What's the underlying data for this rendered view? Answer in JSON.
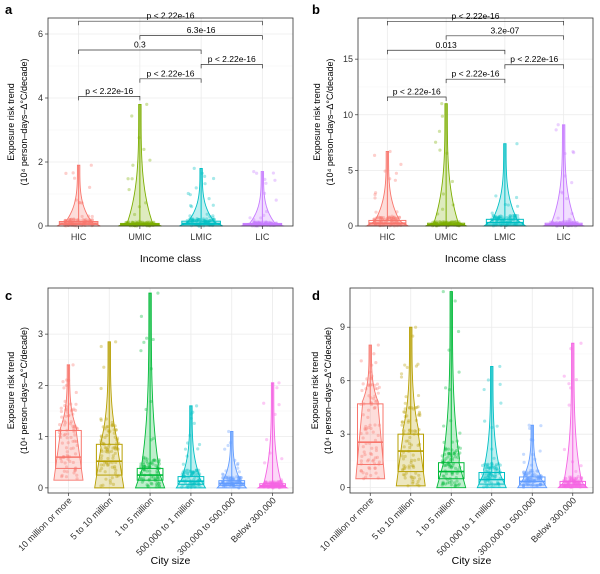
{
  "chart_data": [
    {
      "panel": "a",
      "type": "violin",
      "xlabel": "Income class",
      "ylabel_line1": "Exposure risk trend",
      "ylabel_line2": "(10⁴ person–days–Δ°C/decade)",
      "ylim": [
        0,
        6.5
      ],
      "yticks": [
        0,
        2,
        4,
        6
      ],
      "categories": [
        "HIC",
        "UMIC",
        "LMIC",
        "LIC"
      ],
      "colors": [
        "#F8766D",
        "#7CAE00",
        "#00BFC4",
        "#C77CFF"
      ],
      "max": [
        1.9,
        3.8,
        1.8,
        1.7
      ],
      "q1": [
        0.05,
        0.02,
        0.04,
        0.02
      ],
      "median": [
        0.09,
        0.04,
        0.08,
        0.04
      ],
      "q3": [
        0.14,
        0.08,
        0.15,
        0.08
      ],
      "comparisons": [
        {
          "from": 0,
          "to": 1,
          "label": "p < 2.22e-16",
          "y": 4.05
        },
        {
          "from": 1,
          "to": 2,
          "label": "p < 2.22e-16",
          "y": 4.6
        },
        {
          "from": 2,
          "to": 3,
          "label": "p < 2.22e-16",
          "y": 5.05
        },
        {
          "from": 0,
          "to": 2,
          "label": "0.3",
          "y": 5.5
        },
        {
          "from": 1,
          "to": 3,
          "label": "6.3e-16",
          "y": 5.95
        },
        {
          "from": 0,
          "to": 3,
          "label": "p < 2.22e-16",
          "y": 6.4
        }
      ]
    },
    {
      "panel": "b",
      "type": "violin",
      "xlabel": "Income class",
      "ylabel_line1": "Exposure risk trend",
      "ylabel_line2": "(10⁴ person–days–Δ°C/decade)",
      "ylim": [
        0,
        18.7
      ],
      "yticks": [
        0,
        5,
        10,
        15
      ],
      "categories": [
        "HIC",
        "UMIC",
        "LMIC",
        "LIC"
      ],
      "colors": [
        "#F8766D",
        "#7CAE00",
        "#00BFC4",
        "#C77CFF"
      ],
      "max": [
        6.7,
        11.0,
        7.4,
        9.1
      ],
      "q1": [
        0.1,
        0.05,
        0.1,
        0.05
      ],
      "median": [
        0.25,
        0.12,
        0.3,
        0.12
      ],
      "q3": [
        0.5,
        0.25,
        0.6,
        0.25
      ],
      "comparisons": [
        {
          "from": 0,
          "to": 1,
          "label": "p < 2.22e-16",
          "y": 11.6
        },
        {
          "from": 1,
          "to": 2,
          "label": "p < 2.22e-16",
          "y": 13.2
        },
        {
          "from": 2,
          "to": 3,
          "label": "p < 2.22e-16",
          "y": 14.5
        },
        {
          "from": 0,
          "to": 2,
          "label": "0.013",
          "y": 15.8
        },
        {
          "from": 1,
          "to": 3,
          "label": "3.2e-07",
          "y": 17.1
        },
        {
          "from": 0,
          "to": 3,
          "label": "p < 2.22e-16",
          "y": 18.4
        }
      ]
    },
    {
      "panel": "c",
      "type": "violin",
      "xlabel": "City size",
      "ylabel_line1": "Exposure risk trend",
      "ylabel_line2": "(10⁴ person–days–Δ°C/decade)",
      "ylim": [
        -0.1,
        3.9
      ],
      "yticks": [
        0,
        1,
        2,
        3
      ],
      "categories": [
        "10 million or more",
        "5 to 10 million",
        "1 to 5 million",
        "500,000 to 1 million",
        "300,000 to 500,000",
        "Below 300,000"
      ],
      "colors": [
        "#F8766D",
        "#B79F00",
        "#00BA38",
        "#00BFC4",
        "#619CFF",
        "#F564E3"
      ],
      "max": [
        2.4,
        2.85,
        3.8,
        1.6,
        1.1,
        2.05
      ],
      "min": [
        0.15,
        0.0,
        0.0,
        0.0,
        0.0,
        0.0
      ],
      "q1": [
        0.38,
        0.25,
        0.15,
        0.07,
        0.05,
        0.02
      ],
      "median": [
        0.6,
        0.52,
        0.25,
        0.13,
        0.09,
        0.04
      ],
      "q3": [
        1.12,
        0.85,
        0.38,
        0.22,
        0.14,
        0.08
      ],
      "comparisons": []
    },
    {
      "panel": "d",
      "type": "violin",
      "xlabel": "City size",
      "ylabel_line1": "Exposure risk trend",
      "ylabel_line2": "(10⁴ person–days–Δ°C/decade)",
      "ylim": [
        -0.3,
        11.2
      ],
      "yticks": [
        0,
        3,
        6,
        9
      ],
      "categories": [
        "10 million or more",
        "5 to 10 million",
        "1 to 5 million",
        "500,000 to 1 million",
        "300,000 to 500,000",
        "Below 300,000"
      ],
      "colors": [
        "#F8766D",
        "#B79F00",
        "#00BA38",
        "#00BFC4",
        "#619CFF",
        "#F564E3"
      ],
      "max": [
        8.0,
        9.0,
        11.0,
        6.8,
        3.5,
        8.1
      ],
      "min": [
        0.5,
        0.1,
        0.0,
        0.0,
        0.0,
        0.0
      ],
      "q1": [
        1.3,
        0.9,
        0.5,
        0.2,
        0.15,
        0.05
      ],
      "median": [
        2.55,
        2.05,
        0.9,
        0.45,
        0.35,
        0.15
      ],
      "q3": [
        4.7,
        3.0,
        1.4,
        0.85,
        0.6,
        0.35
      ],
      "comparisons": []
    }
  ]
}
